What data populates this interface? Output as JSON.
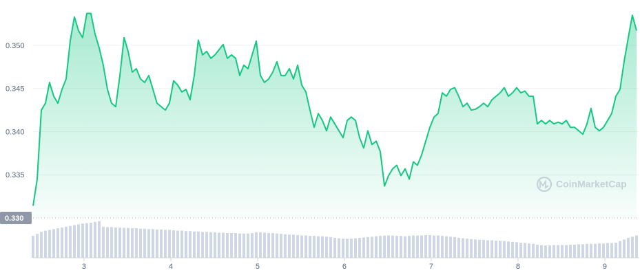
{
  "chart_data": {
    "type": "area",
    "watermark": "CoinMarketCap",
    "color": "#16c784",
    "volume_color": "#cfd6e4",
    "grid": true,
    "xlim": [
      2.413,
      9.397
    ],
    "ylim": [
      0.33,
      0.3545
    ],
    "xticks": [
      3,
      4,
      5,
      6,
      7,
      8,
      9
    ],
    "yticks": [
      {
        "value": 0.33,
        "label": "0.330"
      },
      {
        "value": 0.335,
        "label": "0.335"
      },
      {
        "value": 0.34,
        "label": "0.340"
      },
      {
        "value": 0.345,
        "label": "0.345"
      },
      {
        "value": 0.35,
        "label": "0.350"
      }
    ],
    "x": [
      2.413,
      2.461,
      2.508,
      2.556,
      2.603,
      2.651,
      2.699,
      2.746,
      2.794,
      2.841,
      2.889,
      2.937,
      2.984,
      3.032,
      3.079,
      3.127,
      3.175,
      3.222,
      3.27,
      3.317,
      3.365,
      3.413,
      3.461,
      3.508,
      3.556,
      3.603,
      3.651,
      3.699,
      3.746,
      3.794,
      3.841,
      3.889,
      3.937,
      3.984,
      4.032,
      4.079,
      4.127,
      4.175,
      4.222,
      4.27,
      4.317,
      4.365,
      4.413,
      4.461,
      4.508,
      4.556,
      4.603,
      4.651,
      4.699,
      4.746,
      4.794,
      4.841,
      4.889,
      4.937,
      4.984,
      5.032,
      5.079,
      5.127,
      5.175,
      5.222,
      5.27,
      5.317,
      5.365,
      5.413,
      5.461,
      5.508,
      5.556,
      5.603,
      5.651,
      5.699,
      5.746,
      5.794,
      5.841,
      5.889,
      5.937,
      5.984,
      6.032,
      6.079,
      6.127,
      6.175,
      6.222,
      6.27,
      6.317,
      6.365,
      6.413,
      6.461,
      6.508,
      6.556,
      6.603,
      6.651,
      6.699,
      6.746,
      6.794,
      6.841,
      6.889,
      6.937,
      6.984,
      7.032,
      7.079,
      7.127,
      7.175,
      7.222,
      7.27,
      7.317,
      7.365,
      7.413,
      7.461,
      7.508,
      7.556,
      7.603,
      7.651,
      7.699,
      7.746,
      7.794,
      7.841,
      7.889,
      7.937,
      7.984,
      8.032,
      8.079,
      8.127,
      8.175,
      8.222,
      8.27,
      8.317,
      8.365,
      8.413,
      8.461,
      8.508,
      8.556,
      8.603,
      8.651,
      8.699,
      8.746,
      8.794,
      8.841,
      8.889,
      8.937,
      8.984,
      9.032,
      9.079,
      9.127,
      9.175,
      9.222,
      9.27,
      9.317,
      9.365
    ],
    "values": [
      0.3314,
      0.3345,
      0.3425,
      0.3433,
      0.3457,
      0.3441,
      0.3433,
      0.3449,
      0.3461,
      0.3505,
      0.3533,
      0.3517,
      0.3509,
      0.3537,
      0.3537,
      0.3513,
      0.3497,
      0.3477,
      0.3449,
      0.3433,
      0.3429,
      0.3465,
      0.3509,
      0.3493,
      0.3469,
      0.3473,
      0.3461,
      0.3457,
      0.3465,
      0.3449,
      0.3433,
      0.3429,
      0.3425,
      0.3433,
      0.3459,
      0.3454,
      0.3446,
      0.3449,
      0.3437,
      0.3465,
      0.3506,
      0.3489,
      0.3493,
      0.3485,
      0.3489,
      0.3495,
      0.3501,
      0.3485,
      0.3489,
      0.3485,
      0.3465,
      0.3477,
      0.3473,
      0.3489,
      0.3505,
      0.3465,
      0.3457,
      0.3461,
      0.3469,
      0.3481,
      0.3465,
      0.3465,
      0.3473,
      0.3461,
      0.3477,
      0.3454,
      0.3446,
      0.3425,
      0.3405,
      0.3421,
      0.3413,
      0.3401,
      0.3417,
      0.3409,
      0.3401,
      0.3393,
      0.3413,
      0.3417,
      0.3413,
      0.3393,
      0.3381,
      0.3401,
      0.3385,
      0.3389,
      0.3377,
      0.3337,
      0.3349,
      0.3357,
      0.3361,
      0.3349,
      0.3357,
      0.3345,
      0.3365,
      0.3361,
      0.3373,
      0.3389,
      0.3405,
      0.3417,
      0.3421,
      0.3445,
      0.3441,
      0.3449,
      0.3451,
      0.3441,
      0.3429,
      0.3433,
      0.3425,
      0.3426,
      0.3429,
      0.3433,
      0.3429,
      0.3437,
      0.3441,
      0.3445,
      0.3451,
      0.3441,
      0.3445,
      0.3451,
      0.3445,
      0.3447,
      0.3441,
      0.3441,
      0.3409,
      0.3413,
      0.3409,
      0.3413,
      0.3409,
      0.3411,
      0.3409,
      0.3413,
      0.3405,
      0.3405,
      0.3401,
      0.3397,
      0.3409,
      0.3427,
      0.3405,
      0.3401,
      0.3405,
      0.3413,
      0.3421,
      0.3441,
      0.3449,
      0.3481,
      0.3509,
      0.3535,
      0.3517
    ],
    "volume": {
      "ylim": [
        0,
        100
      ],
      "values": [
        55,
        60,
        65,
        68,
        70,
        72,
        74,
        76,
        78,
        80,
        82,
        84,
        86,
        87,
        88,
        90,
        92,
        78,
        77,
        77,
        76,
        76,
        75,
        75,
        74,
        74,
        73,
        73,
        72,
        72,
        71,
        71,
        70,
        70,
        69,
        68,
        68,
        67,
        67,
        66,
        66,
        65,
        65,
        64,
        64,
        63,
        63,
        62,
        62,
        62,
        61,
        61,
        61,
        62,
        64,
        64,
        63,
        62,
        62,
        61,
        60,
        59,
        58,
        58,
        57,
        56,
        56,
        55,
        55,
        54,
        54,
        53,
        52,
        50,
        49,
        48,
        48,
        48,
        49,
        50,
        51,
        52,
        53,
        54,
        55,
        56,
        56,
        56,
        55,
        55,
        54,
        55,
        56,
        56,
        56,
        57,
        57,
        56,
        56,
        55,
        54,
        53,
        52,
        50,
        49,
        48,
        47,
        46,
        45,
        45,
        44,
        44,
        43,
        43,
        42,
        41,
        40,
        39,
        38,
        37,
        36,
        35,
        33,
        32,
        31,
        31,
        32,
        32,
        32,
        32,
        33,
        33,
        34,
        34,
        35,
        35,
        35,
        36,
        36,
        37,
        37,
        38,
        42,
        46,
        50,
        53,
        56
      ]
    }
  }
}
